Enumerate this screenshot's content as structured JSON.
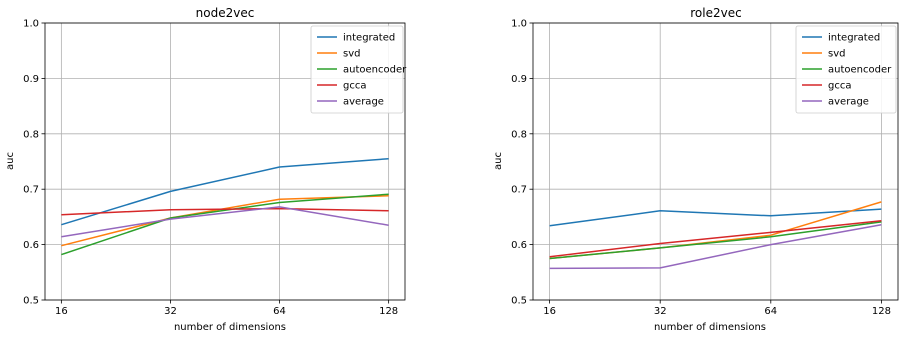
{
  "chart_data": [
    {
      "type": "line",
      "title": "node2vec",
      "xlabel": "number of dimensions",
      "ylabel": "auc",
      "x_scale": "log2",
      "x": [
        16,
        32,
        64,
        128
      ],
      "xticks": [
        "16",
        "32",
        "64",
        "128"
      ],
      "ylim": [
        0.5,
        1.0
      ],
      "yticks": [
        "0.5",
        "0.6",
        "0.7",
        "0.8",
        "0.9",
        "1.0"
      ],
      "grid": true,
      "legend_position": "top-right",
      "series": [
        {
          "name": "integrated",
          "color": "#1f77b4",
          "values": [
            0.636,
            0.696,
            0.74,
            0.755
          ]
        },
        {
          "name": "svd",
          "color": "#ff7f0e",
          "values": [
            0.598,
            0.648,
            0.682,
            0.688
          ]
        },
        {
          "name": "autoencoder",
          "color": "#2ca02c",
          "values": [
            0.582,
            0.648,
            0.676,
            0.691
          ]
        },
        {
          "name": "gcca",
          "color": "#d62728",
          "values": [
            0.654,
            0.663,
            0.665,
            0.661
          ]
        },
        {
          "name": "average",
          "color": "#9467bd",
          "values": [
            0.614,
            0.646,
            0.668,
            0.635
          ]
        }
      ]
    },
    {
      "type": "line",
      "title": "role2vec",
      "xlabel": "number of dimensions",
      "ylabel": "auc",
      "x_scale": "log2",
      "x": [
        16,
        32,
        64,
        128
      ],
      "xticks": [
        "16",
        "32",
        "64",
        "128"
      ],
      "ylim": [
        0.5,
        1.0
      ],
      "yticks": [
        "0.5",
        "0.6",
        "0.7",
        "0.8",
        "0.9",
        "1.0"
      ],
      "grid": true,
      "legend_position": "top-right",
      "series": [
        {
          "name": "integrated",
          "color": "#1f77b4",
          "values": [
            0.634,
            0.661,
            0.652,
            0.664
          ]
        },
        {
          "name": "svd",
          "color": "#ff7f0e",
          "values": [
            0.575,
            0.594,
            0.617,
            0.677
          ]
        },
        {
          "name": "autoencoder",
          "color": "#2ca02c",
          "values": [
            0.575,
            0.594,
            0.614,
            0.641
          ]
        },
        {
          "name": "gcca",
          "color": "#d62728",
          "values": [
            0.578,
            0.602,
            0.622,
            0.643
          ]
        },
        {
          "name": "average",
          "color": "#9467bd",
          "values": [
            0.557,
            0.558,
            0.6,
            0.636
          ]
        }
      ]
    }
  ]
}
